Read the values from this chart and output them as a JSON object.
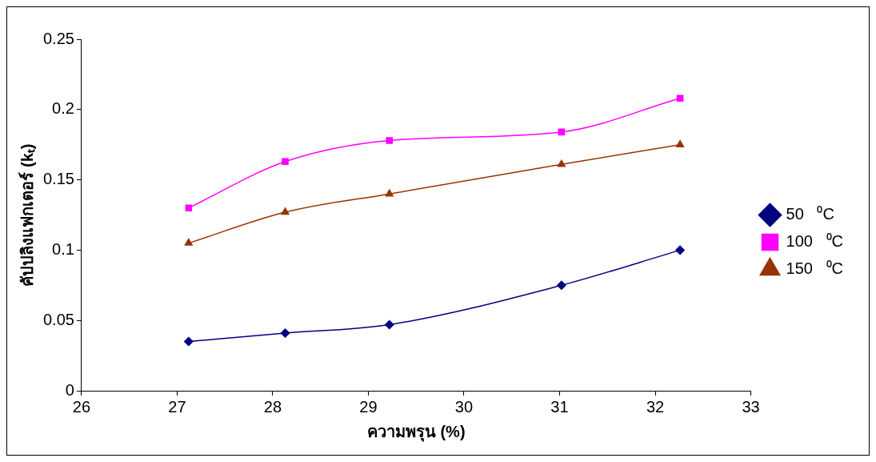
{
  "chart_data": {
    "type": "line",
    "xlabel": "ความพรุน (%)",
    "ylabel": "คัปปลิงแฟกเตอร์ (kₜ)",
    "x": [
      27.12,
      28.13,
      29.22,
      31.02,
      32.26
    ],
    "series": [
      {
        "name": "50   ⁰C",
        "color": "#000080",
        "marker": "diamond",
        "values": [
          0.035,
          0.041,
          0.047,
          0.075,
          0.1
        ]
      },
      {
        "name": "100   ⁰C",
        "color": "#ff00ff",
        "marker": "square",
        "values": [
          0.13,
          0.163,
          0.178,
          0.184,
          0.208
        ]
      },
      {
        "name": "150   ⁰C",
        "color": "#993300",
        "marker": "triangle",
        "values": [
          0.105,
          0.127,
          0.14,
          0.161,
          0.175
        ]
      }
    ],
    "xlim": [
      26,
      33
    ],
    "xticks": [
      26,
      27,
      28,
      29,
      30,
      31,
      32,
      33
    ],
    "ylim": [
      0,
      0.25
    ],
    "yticks": [
      0,
      0.05,
      0.1,
      0.15,
      0.2,
      0.25
    ],
    "grid": false,
    "legend": "right",
    "line_style": "solid"
  }
}
